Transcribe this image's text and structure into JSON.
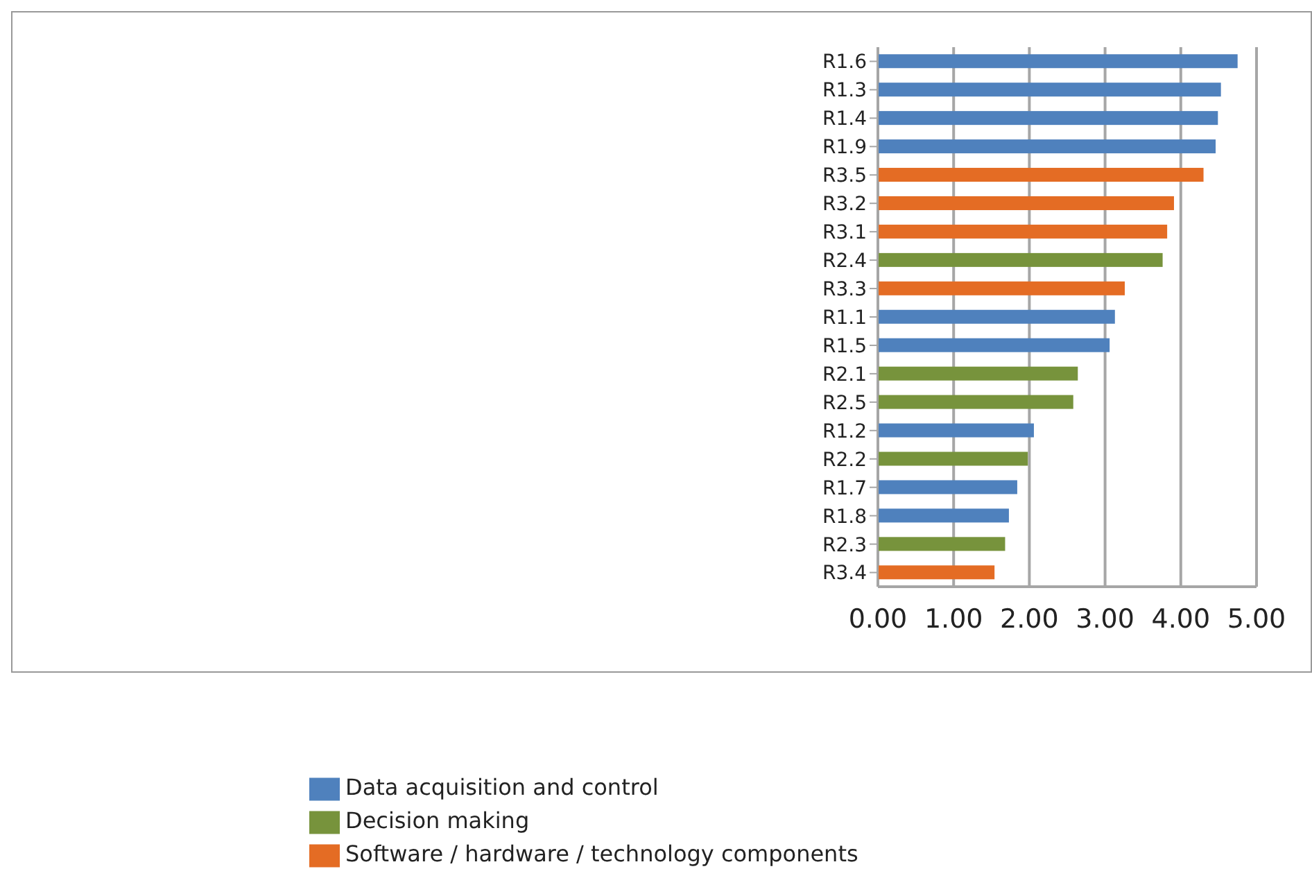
{
  "chart_data": {
    "type": "bar",
    "orientation": "horizontal",
    "stacked": true,
    "categories": [
      "R1.6",
      "R1.3",
      "R1.4",
      "R1.9",
      "R3.5",
      "R3.2",
      "R3.1",
      "R2.4",
      "R3.3",
      "R1.1",
      "R1.5",
      "R2.1",
      "R2.5",
      "R1.2",
      "R2.2",
      "R1.7",
      "R1.8",
      "R2.3",
      "R3.4"
    ],
    "series": [
      {
        "name": "Data acquisition and control",
        "color": "#4f81bd",
        "values": [
          4.75,
          4.53,
          4.49,
          4.46,
          null,
          null,
          null,
          null,
          null,
          3.13,
          3.06,
          null,
          null,
          2.06,
          null,
          1.84,
          1.73,
          null,
          null
        ]
      },
      {
        "name": "Decision making",
        "color": "#77933c",
        "values": [
          null,
          null,
          null,
          null,
          null,
          null,
          null,
          3.76,
          null,
          null,
          null,
          2.64,
          2.58,
          null,
          1.98,
          null,
          null,
          1.68,
          null
        ]
      },
      {
        "name": "Software / hardware / technology components",
        "color": "#e46c24",
        "values": [
          null,
          null,
          null,
          null,
          4.3,
          3.91,
          3.82,
          null,
          3.26,
          null,
          null,
          null,
          null,
          null,
          null,
          null,
          null,
          null,
          1.54
        ]
      }
    ],
    "xlim": [
      0,
      5
    ],
    "xticks": [
      {
        "value": 0,
        "label": "0.00"
      },
      {
        "value": 1,
        "label": "1.00"
      },
      {
        "value": 2,
        "label": "2.00"
      },
      {
        "value": 3,
        "label": "3.00"
      },
      {
        "value": 4,
        "label": "4.00"
      },
      {
        "value": 5,
        "label": "5.00"
      }
    ],
    "grid": "x",
    "legend": "bottom"
  }
}
